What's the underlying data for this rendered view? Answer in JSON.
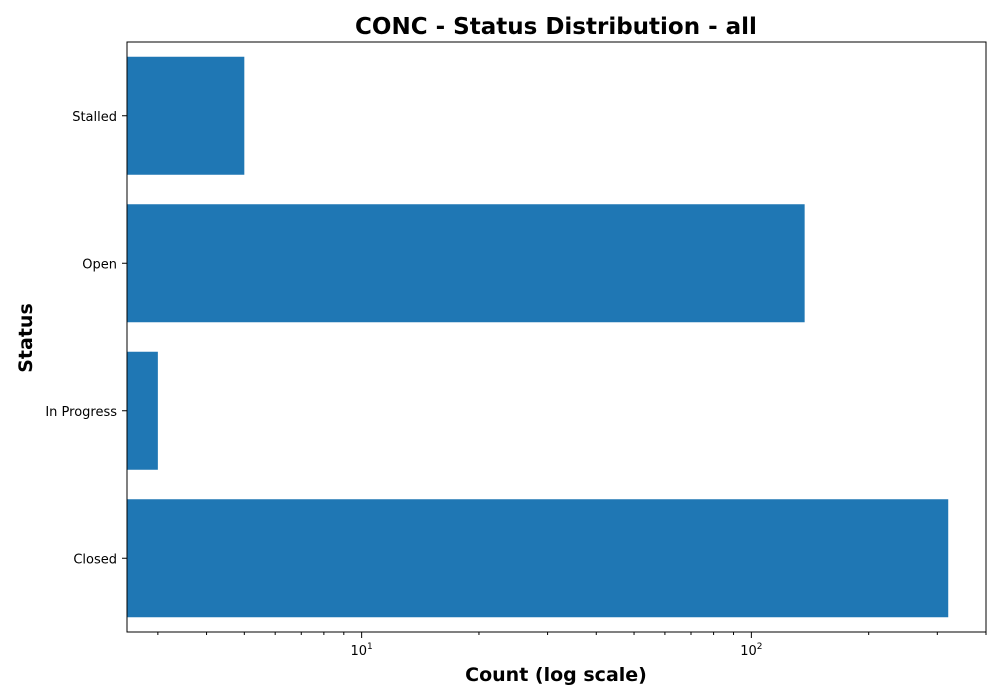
{
  "chart_data": {
    "type": "bar",
    "orientation": "horizontal",
    "title": "CONC - Status Distribution - all",
    "xlabel": "Count (log scale)",
    "ylabel": "Status",
    "xscale": "log",
    "xlim": [
      2.5,
      400
    ],
    "categories": [
      "Closed",
      "In Progress",
      "Open",
      "Stalled"
    ],
    "values": [
      320,
      3,
      137,
      5
    ],
    "bar_color": "#1f77b4",
    "grid": false,
    "major_ticks": [
      {
        "value": 10,
        "base": "10",
        "exponent": "1"
      },
      {
        "value": 100,
        "base": "10",
        "exponent": "2"
      }
    ]
  }
}
